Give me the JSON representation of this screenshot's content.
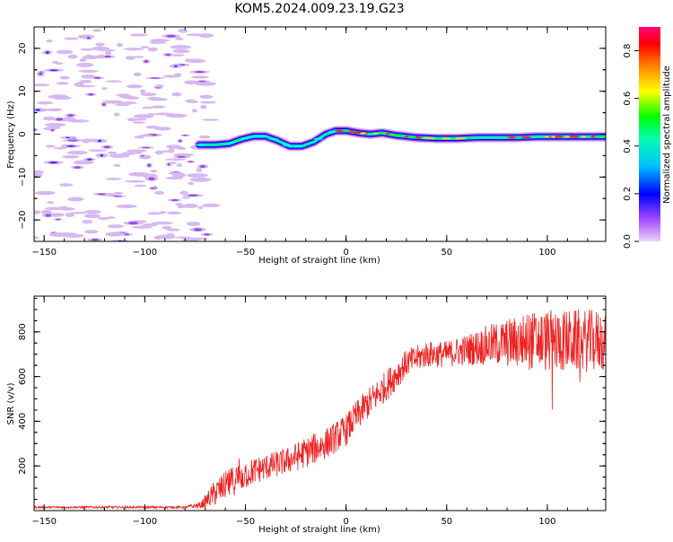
{
  "figure": {
    "title": "KOM5.2024.009.23.19.G23"
  },
  "chart_data": [
    {
      "type": "heatmap",
      "name": "spectrogram",
      "xlabel": "Height of straight line (km)",
      "ylabel": "Frequency (Hz)",
      "xlim": [
        -155,
        129
      ],
      "ylim": [
        -25,
        25
      ],
      "xticks": [
        -150,
        -100,
        -50,
        0,
        50,
        100
      ],
      "yticks": [
        -20,
        -10,
        0,
        10,
        20
      ],
      "colorbar": {
        "label": "Normalized spectral amplitude",
        "range": [
          0,
          0.9
        ],
        "ticks": [
          0.0,
          0.2,
          0.4,
          0.6,
          0.8
        ],
        "colormap": "hsv-purple-to-red",
        "colors": [
          "#d8b8f0",
          "#8a2be2",
          "#0000ff",
          "#00ffff",
          "#00ff00",
          "#ffff00",
          "#ff8000",
          "#ff0000",
          "#ff007f"
        ]
      },
      "signal_trace": {
        "x": [
          -73,
          -65,
          -58,
          -52,
          -46,
          -40,
          -34,
          -28,
          -22,
          -16,
          -10,
          -5,
          0,
          6,
          12,
          18,
          25,
          35,
          45,
          55,
          65,
          75,
          85,
          95,
          105,
          115,
          129
        ],
        "y": [
          -2.5,
          -2.5,
          -2.2,
          -1.2,
          -0.5,
          -0.5,
          -1.5,
          -2.8,
          -2.8,
          -1.8,
          0,
          0.8,
          0.8,
          0.3,
          0,
          0.3,
          -0.3,
          -0.8,
          -1.0,
          -1.0,
          -0.8,
          -0.8,
          -0.8,
          -0.6,
          -0.6,
          -0.6,
          -0.6
        ]
      },
      "noise_region": {
        "x": [
          -155,
          -73
        ],
        "y": [
          -25,
          25
        ]
      },
      "grid": false
    },
    {
      "type": "line",
      "name": "snr",
      "xlabel": "Height of straight line (km)",
      "ylabel": "SNR (v/v)",
      "xlim": [
        -155,
        129
      ],
      "ylim": [
        0,
        960
      ],
      "xticks": [
        -150,
        -100,
        -50,
        0,
        50,
        100
      ],
      "yticks": [
        200,
        400,
        600,
        800
      ],
      "color": "#ee2222",
      "envelope": {
        "x": [
          -155,
          -110,
          -80,
          -72,
          -65,
          -55,
          -45,
          -30,
          -20,
          -10,
          0,
          5,
          10,
          20,
          25,
          30,
          40,
          50,
          60,
          70,
          80,
          90,
          100,
          110,
          120,
          129
        ],
        "mean": [
          15,
          15,
          15,
          25,
          80,
          140,
          180,
          220,
          260,
          300,
          360,
          420,
          470,
          560,
          610,
          660,
          700,
          700,
          720,
          740,
          750,
          760,
          760,
          760,
          760,
          760
        ],
        "spread": [
          5,
          5,
          5,
          15,
          60,
          70,
          60,
          60,
          70,
          70,
          70,
          70,
          70,
          70,
          70,
          60,
          60,
          60,
          70,
          90,
          110,
          130,
          140,
          140,
          140,
          140
        ]
      },
      "grid": false
    }
  ]
}
